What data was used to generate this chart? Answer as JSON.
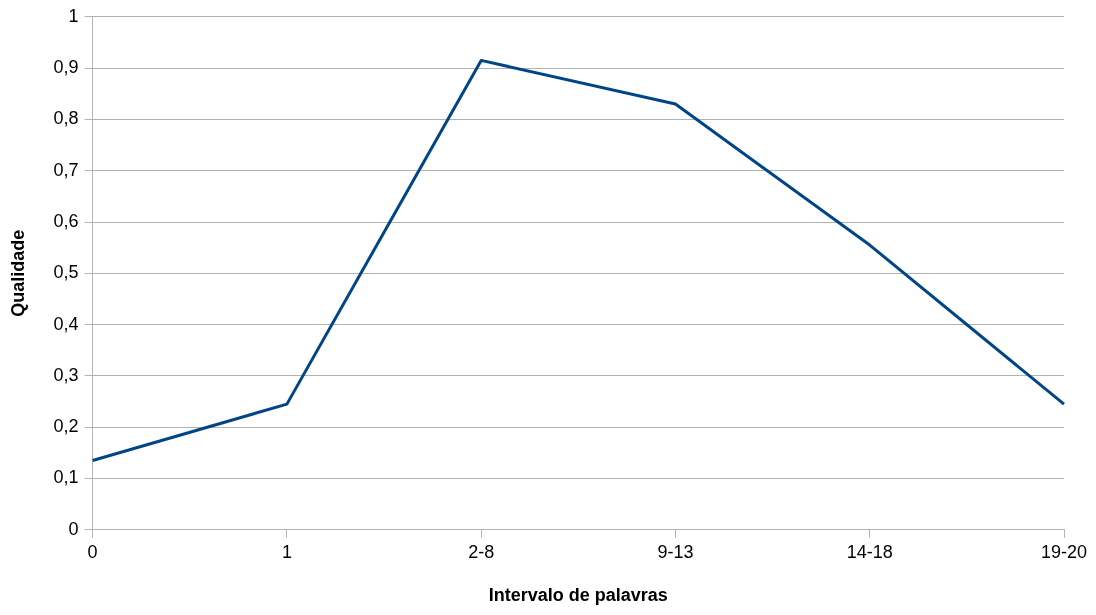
{
  "chart_data": {
    "type": "line",
    "xlabel": "Intervalo de palavras",
    "ylabel": "Qualidade",
    "categories": [
      "0",
      "1",
      "2-8",
      "9-13",
      "14-18",
      "19-20"
    ],
    "series": [
      {
        "color": "#004586",
        "values": [
          0.135,
          0.245,
          0.915,
          0.83,
          0.555,
          0.245
        ]
      }
    ],
    "ylim": [
      0,
      1
    ],
    "yticks": [
      {
        "value": 0,
        "label": "0"
      },
      {
        "value": 0.1,
        "label": "0,1"
      },
      {
        "value": 0.2,
        "label": "0,2"
      },
      {
        "value": 0.3,
        "label": "0,3"
      },
      {
        "value": 0.4,
        "label": "0,4"
      },
      {
        "value": 0.5,
        "label": "0,5"
      },
      {
        "value": 0.6,
        "label": "0,6"
      },
      {
        "value": 0.7,
        "label": "0,7"
      },
      {
        "value": 0.8,
        "label": "0,8"
      },
      {
        "value": 0.9,
        "label": "0,9"
      },
      {
        "value": 1,
        "label": "1"
      }
    ],
    "grid": "y",
    "legend": false
  }
}
